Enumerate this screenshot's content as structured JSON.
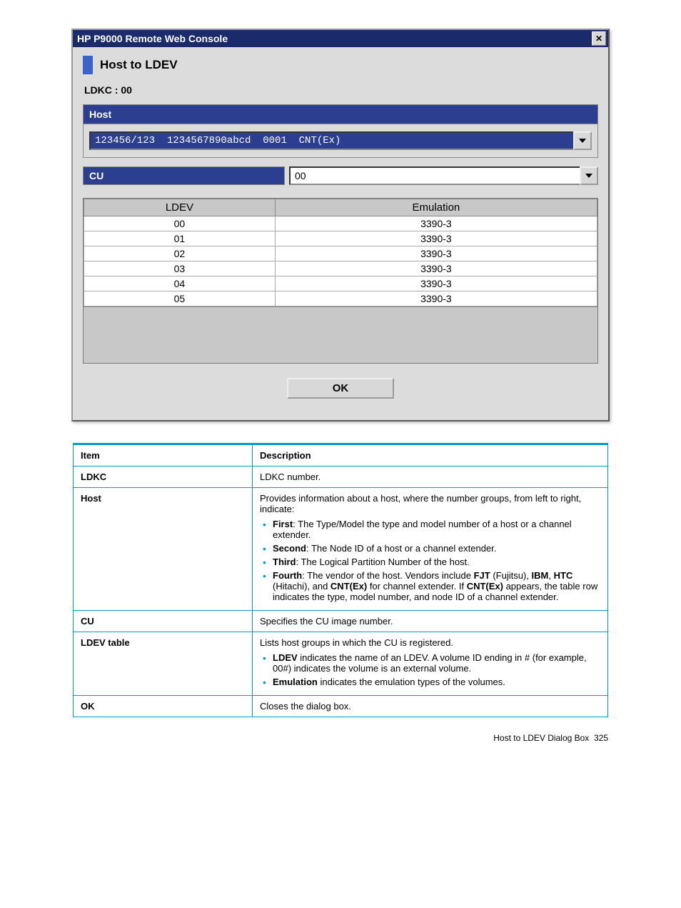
{
  "dialog": {
    "title": "HP P9000 Remote Web Console",
    "section_title": "Host to LDEV",
    "ldkc_label": "LDKC : 00",
    "host_header": "Host",
    "host_value": "123456/123  1234567890abcd  0001  CNT(Ex)",
    "cu_label": "CU",
    "cu_value": "00",
    "ldev_table": {
      "headers": {
        "ldev": "LDEV",
        "emulation": "Emulation"
      },
      "rows": [
        {
          "ldev": "00",
          "emulation": "3390-3"
        },
        {
          "ldev": "01",
          "emulation": "3390-3"
        },
        {
          "ldev": "02",
          "emulation": "3390-3"
        },
        {
          "ldev": "03",
          "emulation": "3390-3"
        },
        {
          "ldev": "04",
          "emulation": "3390-3"
        },
        {
          "ldev": "05",
          "emulation": "3390-3"
        }
      ]
    },
    "ok_label": "OK"
  },
  "desc": {
    "headers": {
      "item": "Item",
      "description": "Description"
    },
    "rows": {
      "ldkc": {
        "item": "LDKC",
        "desc": "LDKC number."
      },
      "host": {
        "item": "Host",
        "intro": "Provides information about a host, where the number groups, from left to right, indicate:",
        "b1_label": "First",
        "b1_rest": ": The Type/Model the type and model number of a host or a channel extender.",
        "b2_label": "Second",
        "b2_rest": ": The Node ID of a host or a channel extender.",
        "b3_label": "Third",
        "b3_rest": ": The Logical Partition Number of the host.",
        "b4_label": "Fourth",
        "b4_a": ": The vendor of the host. Vendors include ",
        "b4_fjt": "FJT",
        "b4_b": " (Fujitsu), ",
        "b4_ibm": "IBM",
        "b4_c": ", ",
        "b4_htc": "HTC",
        "b4_d": " (Hitachi), and ",
        "b4_cnt1": "CNT(Ex)",
        "b4_e": " for channel extender. If ",
        "b4_cnt2": "CNT(Ex)",
        "b4_f": " appears, the table row indicates the type, model number, and node ID of a channel extender."
      },
      "cu": {
        "item": "CU",
        "desc": "Specifies the CU image number."
      },
      "ldev_table": {
        "item": "LDEV table",
        "intro": "Lists host groups in which the CU is registered.",
        "b1_label": "LDEV",
        "b1_rest": " indicates the name of an LDEV. A volume ID ending in # (for example, 00#) indicates the volume is an external volume.",
        "b2_label": "Emulation",
        "b2_rest": " indicates the emulation types of the volumes."
      },
      "ok": {
        "item": "OK",
        "desc": "Closes the dialog box."
      }
    }
  },
  "footer": {
    "text": "Host to LDEV Dialog Box",
    "page": "325"
  }
}
